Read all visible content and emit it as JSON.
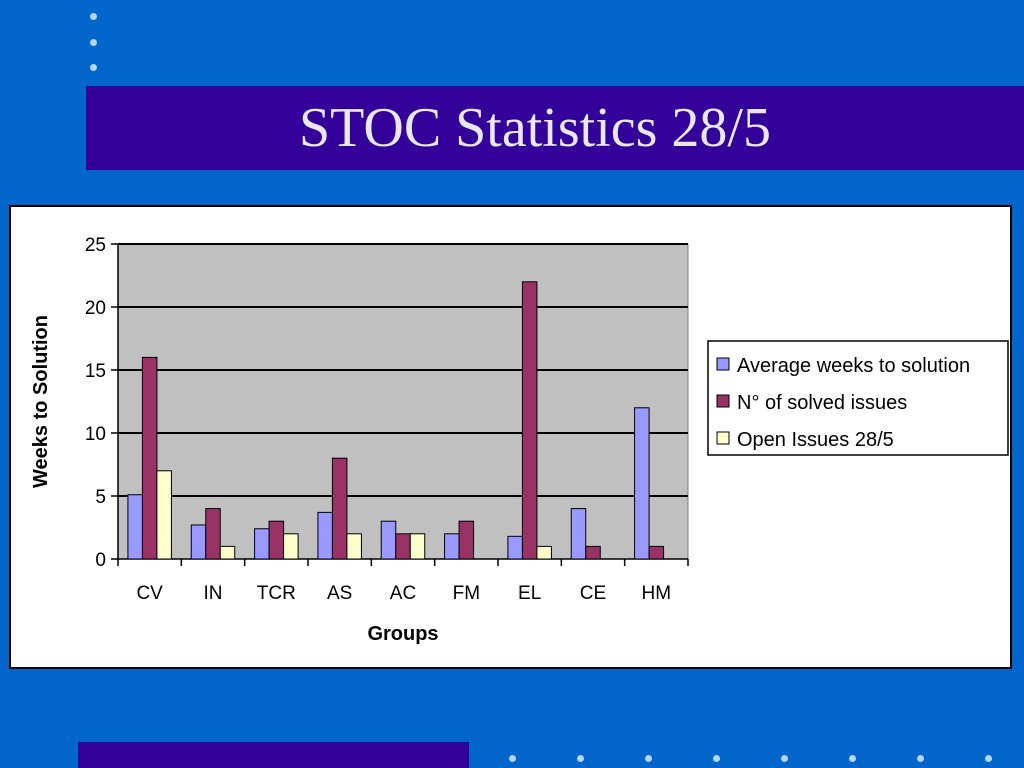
{
  "slide": {
    "title": "STOC Statistics 28/5"
  },
  "colors": {
    "background": "#0066cc",
    "title_bar": "#330099",
    "plot_area": "#c0c0c0"
  },
  "chart_data": {
    "type": "bar",
    "title": "",
    "xlabel": "Groups",
    "ylabel": "Weeks to Solution",
    "ylim": [
      0,
      25
    ],
    "yticks": [
      0,
      5,
      10,
      15,
      20,
      25
    ],
    "grid": true,
    "legend_position": "right",
    "categories": [
      "CV",
      "IN",
      "TCR",
      "AS",
      "AC",
      "FM",
      "EL",
      "CE",
      "HM"
    ],
    "series": [
      {
        "name": "Average weeks to solution",
        "color": "#9999ff",
        "values": [
          5.1,
          2.7,
          2.4,
          3.7,
          3,
          2,
          1.8,
          4,
          12
        ]
      },
      {
        "name": "N° of solved issues",
        "color": "#993366",
        "values": [
          16,
          4,
          3,
          8,
          2,
          3,
          22,
          1,
          1
        ]
      },
      {
        "name": "Open Issues 28/5",
        "color": "#ffffcc",
        "values": [
          7,
          1,
          2,
          2,
          2,
          null,
          1,
          null,
          null
        ]
      }
    ]
  }
}
